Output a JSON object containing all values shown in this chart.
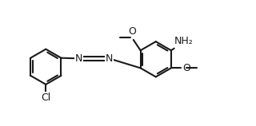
{
  "bg_color": "#ffffff",
  "line_color": "#1a1a1a",
  "line_width": 1.5,
  "font_size": 9,
  "figsize": [
    3.2,
    1.58
  ],
  "dpi": 100,
  "xlim": [
    0,
    10
  ],
  "ylim": [
    0,
    5
  ]
}
